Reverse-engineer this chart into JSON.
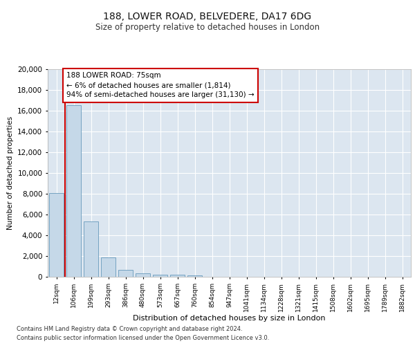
{
  "title1": "188, LOWER ROAD, BELVEDERE, DA17 6DG",
  "title2": "Size of property relative to detached houses in London",
  "xlabel": "Distribution of detached houses by size in London",
  "ylabel": "Number of detached properties",
  "categories": [
    "12sqm",
    "106sqm",
    "199sqm",
    "293sqm",
    "386sqm",
    "480sqm",
    "573sqm",
    "667sqm",
    "760sqm",
    "854sqm",
    "947sqm",
    "1041sqm",
    "1134sqm",
    "1228sqm",
    "1321sqm",
    "1415sqm",
    "1508sqm",
    "1602sqm",
    "1695sqm",
    "1789sqm",
    "1882sqm"
  ],
  "values": [
    8100,
    16500,
    5350,
    1850,
    700,
    320,
    210,
    175,
    140,
    0,
    0,
    0,
    0,
    0,
    0,
    0,
    0,
    0,
    0,
    0,
    0
  ],
  "bar_color": "#c5d8e8",
  "bar_edge_color": "#6699bb",
  "vline_color": "#cc0000",
  "annotation_text": "188 LOWER ROAD: 75sqm\n← 6% of detached houses are smaller (1,814)\n94% of semi-detached houses are larger (31,130) →",
  "annotation_box_facecolor": "#ffffff",
  "annotation_box_edgecolor": "#cc0000",
  "ylim": [
    0,
    20000
  ],
  "yticks": [
    0,
    2000,
    4000,
    6000,
    8000,
    10000,
    12000,
    14000,
    16000,
    18000,
    20000
  ],
  "background_color": "#dce6f0",
  "grid_color": "#ffffff",
  "footer1": "Contains HM Land Registry data © Crown copyright and database right 2024.",
  "footer2": "Contains public sector information licensed under the Open Government Licence v3.0."
}
